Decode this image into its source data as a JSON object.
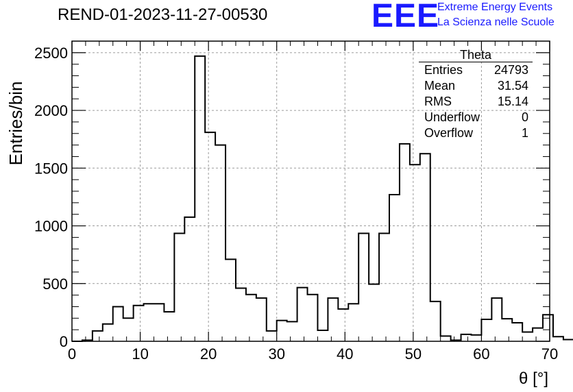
{
  "header": {
    "title": "REND-01-2023-11-27-00530",
    "logo_text": "EEE",
    "logo_line1": "Extreme Energy Events",
    "logo_line2": "La Scienza nelle Scuole"
  },
  "stats_box": {
    "title": "Theta",
    "rows": [
      {
        "label": "Entries",
        "value": "24793"
      },
      {
        "label": "Mean",
        "value": "31.54"
      },
      {
        "label": "RMS",
        "value": "15.14"
      },
      {
        "label": "Underflow",
        "value": "0"
      },
      {
        "label": "Overflow",
        "value": "1"
      }
    ]
  },
  "colors": {
    "line": "#000000",
    "grid": "#9a9a9a",
    "logo": "#1a1aff"
  },
  "chart_data": {
    "type": "histogram",
    "title": "REND-01-2023-11-27-00530",
    "xlabel": "θ [°]",
    "ylabel": "Entries/bin",
    "xlim": [
      0,
      70
    ],
    "ylim": [
      0,
      2600
    ],
    "grid": true,
    "x_ticks": [
      0,
      10,
      20,
      30,
      40,
      50,
      60,
      70
    ],
    "y_ticks": [
      0,
      500,
      1000,
      1500,
      2000,
      2500
    ],
    "bin_width": 1.5,
    "bin_edges_start": 0,
    "values": [
      0,
      10,
      90,
      150,
      300,
      200,
      310,
      325,
      325,
      255,
      935,
      1075,
      2470,
      1810,
      1700,
      710,
      460,
      405,
      375,
      90,
      180,
      170,
      465,
      405,
      95,
      375,
      280,
      325,
      935,
      495,
      935,
      1270,
      1710,
      1530,
      1625,
      345,
      45,
      10,
      60,
      55,
      190,
      375,
      195,
      160,
      80,
      115,
      230,
      40,
      15
    ]
  }
}
